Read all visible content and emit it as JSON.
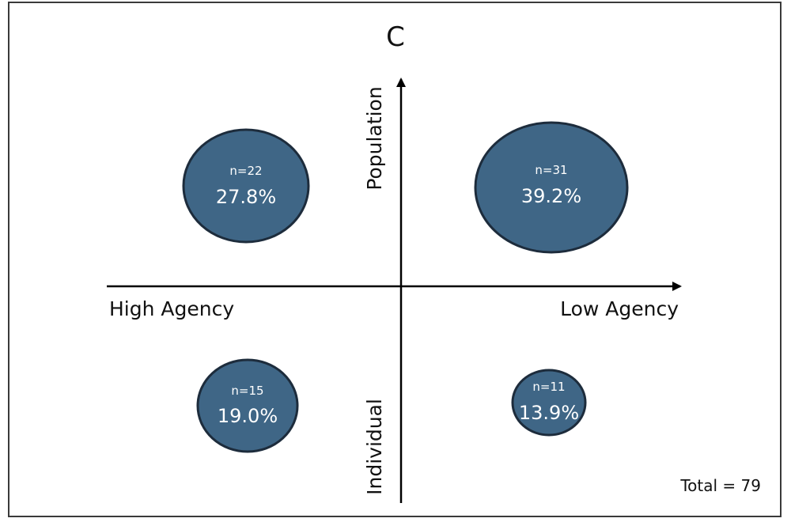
{
  "panel_label": "C",
  "axes": {
    "y_top": "Population",
    "y_bottom": "Individual",
    "x_left": "High Agency",
    "x_right": "Low Agency"
  },
  "quadrants": [
    {
      "id": "high-agency-population",
      "n": "n=22",
      "percent": "27.8%",
      "share": 27.8
    },
    {
      "id": "low-agency-population",
      "n": "n=31",
      "percent": "39.2%",
      "share": 39.2
    },
    {
      "id": "high-agency-individual",
      "n": "n=15",
      "percent": "19.0%",
      "share": 19.0
    },
    {
      "id": "low-agency-individual",
      "n": "n=11",
      "percent": "13.9%",
      "share": 13.9
    }
  ],
  "total": "Total = 79",
  "colors": {
    "bubble_fill": "#3f6686",
    "bubble_stroke": "#1d2c3c",
    "axis": "#000000",
    "text": "#111111"
  }
}
